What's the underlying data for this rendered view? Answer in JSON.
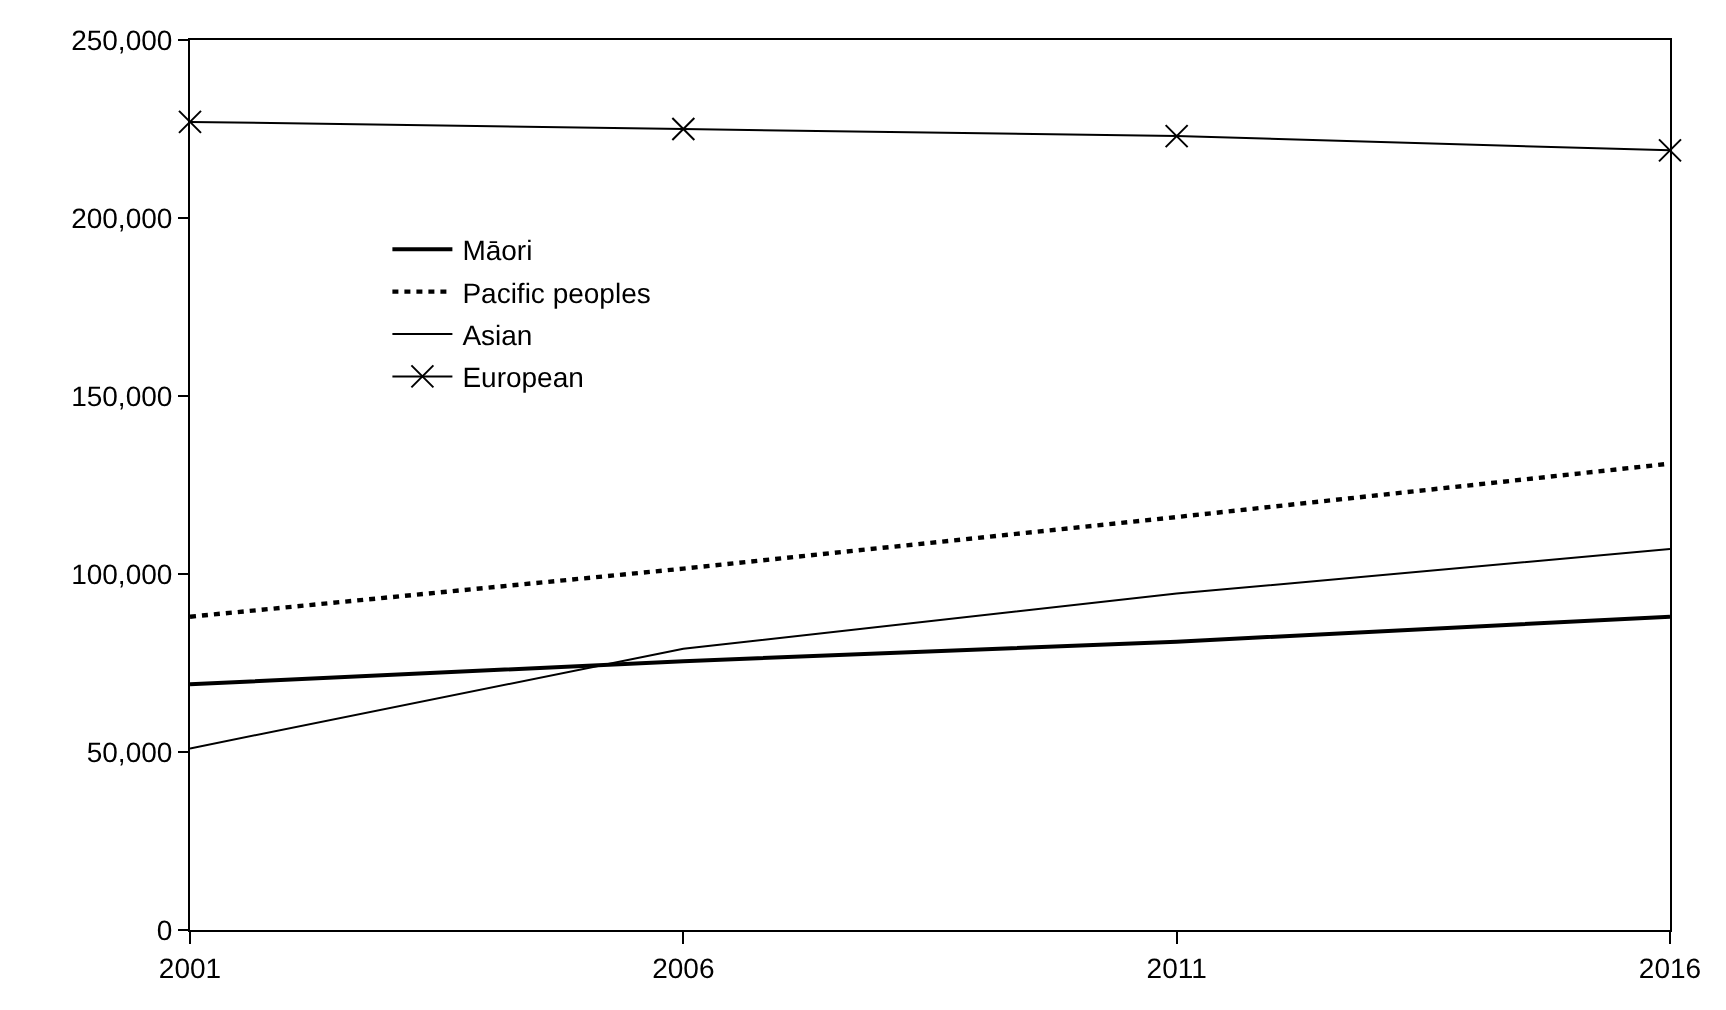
{
  "chart_data": {
    "type": "line",
    "x": [
      2001,
      2006,
      2011,
      2016
    ],
    "xlim": [
      2001,
      2016
    ],
    "xticks": [
      2001,
      2006,
      2011,
      2016
    ],
    "ylim": [
      0,
      250000
    ],
    "yticks": [
      {
        "value": 0,
        "label": "0"
      },
      {
        "value": 50000,
        "label": "50,000"
      },
      {
        "value": 100000,
        "label": "100,000"
      },
      {
        "value": 150000,
        "label": "150,000"
      },
      {
        "value": 200000,
        "label": "200,000"
      },
      {
        "value": 250000,
        "label": "250,000"
      }
    ],
    "legend": "top left",
    "marker": "none",
    "line_style": "solid",
    "series": [
      {
        "name": "Māori",
        "color": "#000000",
        "values": [
          69000,
          75500,
          81000,
          88000
        ]
      },
      {
        "name": "Pacific peoples",
        "color": "#000000",
        "line_style": "dotted",
        "values": [
          88000,
          101500,
          116000,
          131000
        ]
      },
      {
        "name": "Asian",
        "color": "#000000",
        "values": [
          51000,
          79000,
          94500,
          107000
        ]
      },
      {
        "name": "European",
        "color": "#000000",
        "marker": "cross",
        "values": [
          227000,
          225000,
          223000,
          219000
        ]
      }
    ]
  }
}
